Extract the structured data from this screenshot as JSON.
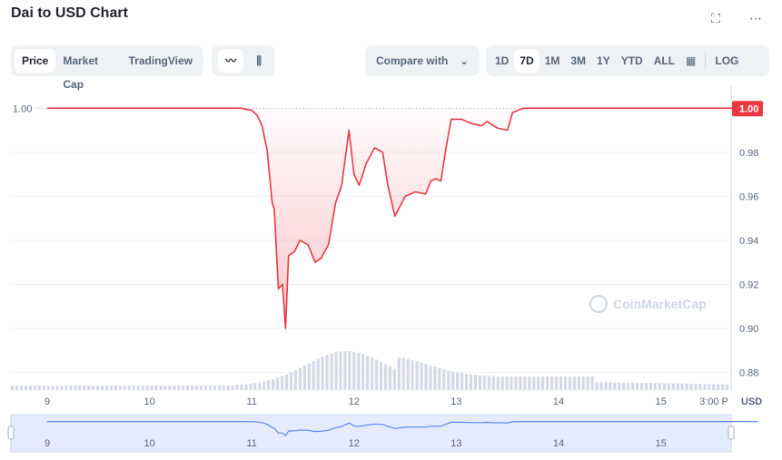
{
  "title": "Dai to USD Chart",
  "icons": {
    "fullscreen": "fullscreen-icon",
    "more": "more-dots-icon",
    "line": "line-chart-icon",
    "candle": "candlestick-icon",
    "chevron": "chevron-down-icon",
    "calendar": "calendar-icon"
  },
  "toolbar": {
    "tabs": [
      "Price",
      "Market Cap",
      "TradingView"
    ],
    "compare_label": "Compare with",
    "ranges": [
      "1D",
      "7D",
      "1M",
      "3M",
      "1Y",
      "YTD",
      "ALL"
    ],
    "log_label": "LOG"
  },
  "watermark": "CoinMarketCap",
  "colors": {
    "accent": "#ea3943",
    "up": "#16c784",
    "navigator": "#6188ff",
    "volume": "#d5d9e6"
  },
  "chart_data": {
    "type": "line",
    "x_labels": [
      "9",
      "10",
      "11",
      "12",
      "13",
      "14",
      "15",
      "3:00 P"
    ],
    "y_ticks": [
      "0.88",
      "0.90",
      "0.92",
      "0.94",
      "0.96",
      "0.98",
      "1.00"
    ],
    "y_unit": "USD",
    "ylim": [
      0.872,
      1.01
    ],
    "baseline": 1.0,
    "baseline_label": "1.00",
    "current_label": "1.00",
    "price": [
      [
        0,
        1.0
      ],
      [
        0.05,
        1.0
      ],
      [
        0.1,
        1.0
      ],
      [
        0.2,
        1.0
      ],
      [
        0.3,
        1.0
      ],
      [
        0.4,
        1.0
      ],
      [
        0.5,
        1.0
      ],
      [
        0.6,
        1.0
      ],
      [
        0.7,
        1.0
      ],
      [
        0.8,
        1.0
      ],
      [
        0.9,
        1.0
      ],
      [
        1.0,
        1.0
      ],
      [
        1.1,
        1.0
      ],
      [
        1.2,
        1.0
      ],
      [
        1.3,
        1.0
      ],
      [
        1.4,
        1.0
      ],
      [
        1.5,
        1.0
      ],
      [
        1.6,
        1.0
      ],
      [
        1.7,
        1.0
      ],
      [
        1.8,
        1.0
      ],
      [
        1.9,
        1.0
      ],
      [
        2.0,
        0.999
      ],
      [
        2.05,
        0.997
      ],
      [
        2.1,
        0.992
      ],
      [
        2.15,
        0.981
      ],
      [
        2.2,
        0.957
      ],
      [
        2.22,
        0.954
      ],
      [
        2.26,
        0.918
      ],
      [
        2.3,
        0.92
      ],
      [
        2.33,
        0.9
      ],
      [
        2.36,
        0.933
      ],
      [
        2.42,
        0.935
      ],
      [
        2.47,
        0.94
      ],
      [
        2.55,
        0.938
      ],
      [
        2.62,
        0.93
      ],
      [
        2.68,
        0.932
      ],
      [
        2.75,
        0.938
      ],
      [
        2.82,
        0.957
      ],
      [
        2.88,
        0.965
      ],
      [
        2.95,
        0.99
      ],
      [
        3.0,
        0.97
      ],
      [
        3.05,
        0.965
      ],
      [
        3.12,
        0.975
      ],
      [
        3.2,
        0.982
      ],
      [
        3.28,
        0.98
      ],
      [
        3.33,
        0.965
      ],
      [
        3.4,
        0.951
      ],
      [
        3.5,
        0.96
      ],
      [
        3.6,
        0.962
      ],
      [
        3.7,
        0.961
      ],
      [
        3.75,
        0.967
      ],
      [
        3.8,
        0.968
      ],
      [
        3.85,
        0.967
      ],
      [
        3.9,
        0.982
      ],
      [
        3.95,
        0.995
      ],
      [
        4.05,
        0.995
      ],
      [
        4.15,
        0.993
      ],
      [
        4.25,
        0.992
      ],
      [
        4.3,
        0.994
      ],
      [
        4.4,
        0.991
      ],
      [
        4.5,
        0.99
      ],
      [
        4.55,
        0.998
      ],
      [
        4.65,
        1.0
      ],
      [
        4.8,
        1.0
      ],
      [
        5.0,
        1.0
      ],
      [
        5.2,
        1.0
      ],
      [
        5.4,
        1.0
      ],
      [
        5.6,
        1.0
      ],
      [
        5.8,
        1.0
      ],
      [
        6.0,
        1.0
      ],
      [
        6.2,
        1.0
      ],
      [
        6.4,
        1.0
      ],
      [
        6.6,
        1.0
      ],
      [
        6.8,
        1.0
      ],
      [
        6.95,
        0.999
      ]
    ]
  }
}
